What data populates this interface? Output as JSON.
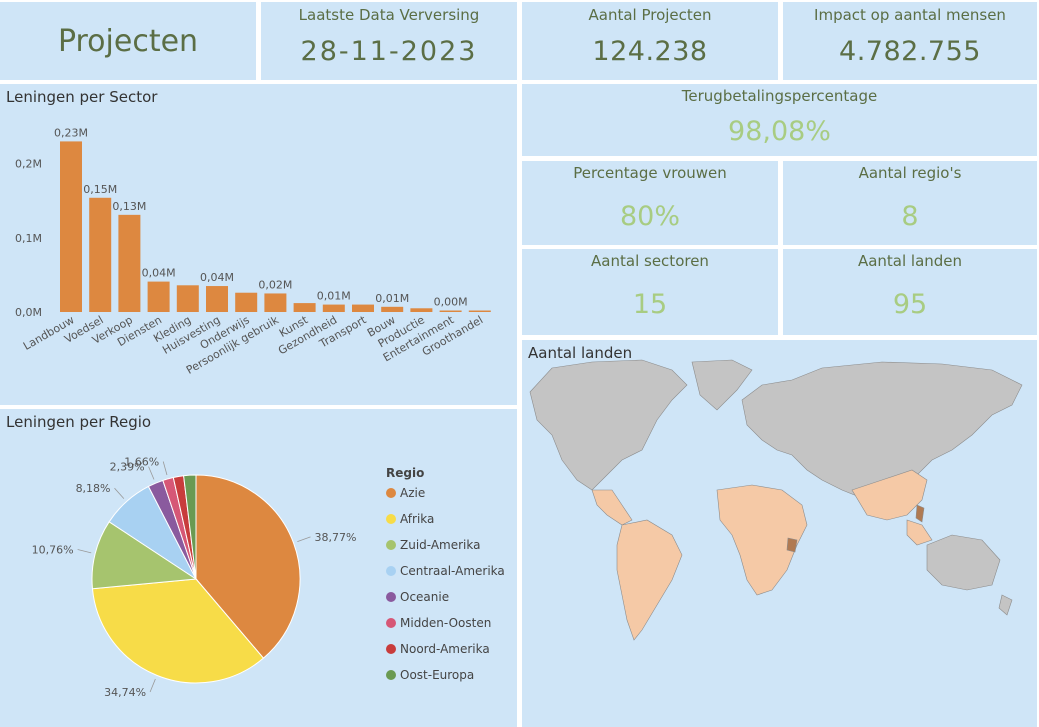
{
  "header": {
    "title": "Projecten"
  },
  "kpis": {
    "refresh": {
      "label": "Laatste Data Verversing",
      "value": "28-11-2023"
    },
    "projects": {
      "label": "Aantal Projecten",
      "value": "124.238"
    },
    "impact": {
      "label": "Impact op aantal mensen",
      "value": "4.782.755"
    }
  },
  "stats": {
    "repayment": {
      "label": "Terugbetalingspercentage",
      "value": "98,08%"
    },
    "women": {
      "label": "Percentage vrouwen",
      "value": "80%"
    },
    "regions": {
      "label": "Aantal regio's",
      "value": "8"
    },
    "sectors": {
      "label": "Aantal sectoren",
      "value": "15"
    },
    "countries": {
      "label": "Aantal landen",
      "value": "95"
    }
  },
  "map": {
    "title": "Aantal landen"
  },
  "colors": {
    "tile": "#cfe5f7",
    "bar": "#dd8840",
    "title_green": "#5b6e45",
    "stat_green": "#a8cc82"
  },
  "chart_data": [
    {
      "type": "bar",
      "title": "Leningen per Sector",
      "categories": [
        "Landbouw",
        "Voedsel",
        "Verkoop",
        "Diensten",
        "Kleding",
        "Huisvesting",
        "Onderwijs",
        "Persoonlijk gebruik",
        "Kunst",
        "Gezondheid",
        "Transport",
        "Bouw",
        "Productie",
        "Entertainment",
        "Groothandel"
      ],
      "values": [
        0.23,
        0.154,
        0.131,
        0.041,
        0.036,
        0.035,
        0.026,
        0.025,
        0.012,
        0.01,
        0.01,
        0.007,
        0.005,
        0.002,
        0.002
      ],
      "data_labels": [
        "0,23M",
        "0,15M",
        "0,13M",
        "0,04M",
        "",
        "0,04M",
        "",
        "0,02M",
        "",
        "0,01M",
        "",
        "0,01M",
        "",
        "0,00M",
        ""
      ],
      "ytick_labels": [
        "0,0M",
        "0,1M",
        "0,2M"
      ],
      "yticks": [
        0,
        0.1,
        0.2
      ],
      "ylim": [
        0,
        0.24
      ],
      "unit": "M"
    },
    {
      "type": "pie",
      "title": "Leningen per Regio",
      "legend_title": "Regio",
      "legend_position": "right",
      "labels": [
        "Azie",
        "Afrika",
        "Zuid-Amerika",
        "Centraal-Amerika",
        "Oceanie",
        "Midden-Oosten",
        "Noord-Amerika",
        "Oost-Europa"
      ],
      "values": [
        38.77,
        34.74,
        10.76,
        8.18,
        2.39,
        1.66,
        1.6,
        1.9
      ],
      "data_labels": [
        "38,77%",
        "34,74%",
        "10,76%",
        "8,18%",
        "2,39%",
        "1,66%",
        "",
        ""
      ],
      "colors": [
        "#dd8840",
        "#f7dc48",
        "#a6c46e",
        "#a8d1f2",
        "#8a5a9e",
        "#d65776",
        "#c83c3c",
        "#6a9a52"
      ]
    }
  ]
}
